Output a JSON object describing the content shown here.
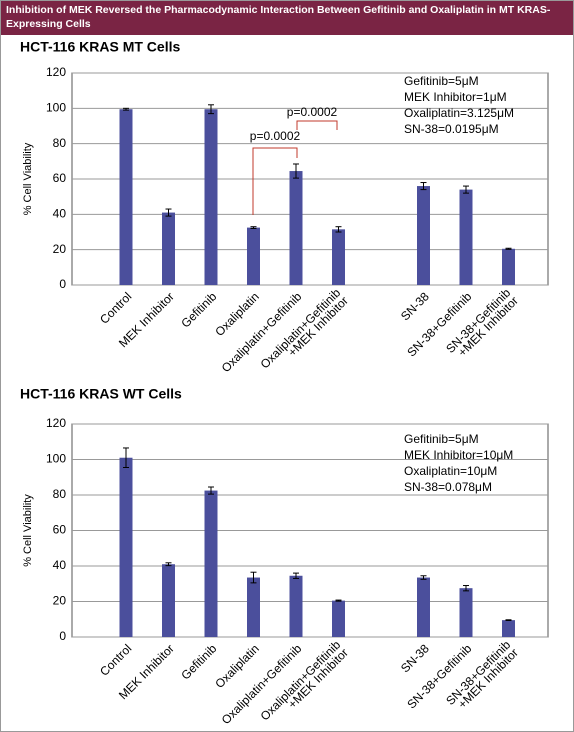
{
  "title": "Inhibition of MEK Reversed the Pharmacodynamic Interaction Between Gefitinib and Oxaliplatin in MT KRAS-Expressing Cells",
  "chart_data": [
    {
      "type": "bar",
      "title": "HCT-116 KRAS MT Cells",
      "y_label": "% Cell Viability",
      "categories": [
        "Control",
        "MEK Inhibitor",
        "Gefitinib",
        "Oxaliplatin",
        "Oxaliplatin+Gefitinib",
        "Oxaliplatin+Gefitinib\n+MEK Inhibitor",
        null,
        "SN-38",
        "SN-38+Gefitinib",
        "SN-38+Gefitinib\n+MEK Inhibitor"
      ],
      "values": [
        99.5,
        41,
        99.5,
        32.5,
        64.5,
        31.5,
        null,
        56,
        54,
        20.5
      ],
      "errors": [
        0.5,
        2,
        2.5,
        0.5,
        4,
        1.5,
        null,
        2,
        2,
        0.3
      ],
      "color": "#4b4f9c",
      "ylim": [
        0,
        120
      ],
      "yticks": [
        0,
        20,
        40,
        60,
        80,
        100,
        120
      ],
      "grid": true,
      "annotations": [
        "p=0.0002",
        "p=0.0002"
      ],
      "notes": [
        "Gefitinib=5μM",
        "MEK Inhibitor=1μM",
        "Oxaliplatin=3.125μM",
        "SN-38=0.0195μM"
      ]
    },
    {
      "type": "bar",
      "title": "HCT-116 KRAS WT Cells",
      "y_label": "% Cell Viability",
      "categories": [
        "Control",
        "MEK Inhibitor",
        "Gefitinib",
        "Oxaliplatin",
        "Oxaliplatin+Gefitinib",
        "Oxaliplatin+Gefitinib\n+MEK Inhibitor",
        null,
        "SN-38",
        "SN-38+Gefitinib",
        "SN-38+Gefitinib\n+MEK Inhibitor"
      ],
      "values": [
        101,
        41,
        82.5,
        33.5,
        34.5,
        20.5,
        null,
        33.5,
        27.5,
        9.5
      ],
      "errors": [
        5.5,
        0.8,
        2,
        3,
        1.5,
        0.3,
        null,
        1,
        1.5,
        0.2
      ],
      "color": "#4b4f9c",
      "ylim": [
        0,
        120
      ],
      "yticks": [
        0,
        20,
        40,
        60,
        80,
        100,
        120
      ],
      "grid": true,
      "notes": [
        "Gefitinib=5μM",
        "MEK Inhibitor=10μM",
        "Oxaliplatin=10μM",
        "SN-38=0.078μM"
      ]
    }
  ]
}
